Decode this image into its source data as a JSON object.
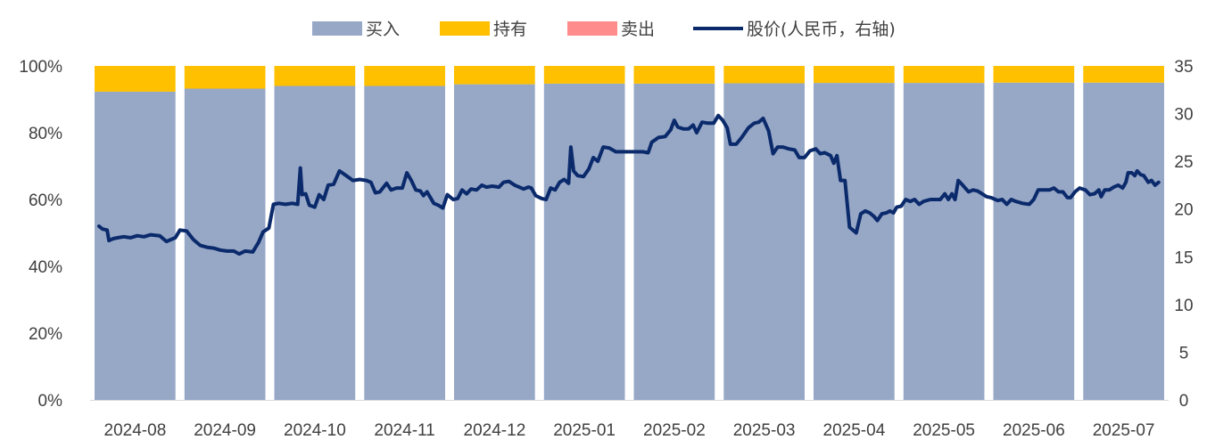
{
  "chart_data": {
    "type": "bar",
    "stacked": true,
    "percent_stacked": true,
    "categories": [
      "2024-08",
      "2024-09",
      "2024-10",
      "2024-11",
      "2024-12",
      "2025-01",
      "2025-02",
      "2025-03",
      "2025-04",
      "2025-05",
      "2025-06",
      "2025-07"
    ],
    "series": [
      {
        "name": "买入",
        "color": "#97A8C7",
        "values": [
          92.3,
          93.2,
          94.0,
          94.0,
          94.5,
          94.7,
          94.7,
          94.8,
          94.9,
          94.9,
          95.0,
          95.0
        ]
      },
      {
        "name": "持有",
        "color": "#FFC000",
        "values": [
          7.7,
          6.8,
          6.0,
          6.0,
          5.5,
          5.3,
          5.3,
          5.2,
          5.1,
          5.1,
          5.0,
          5.0
        ]
      },
      {
        "name": "卖出",
        "color": "#FF8C8C",
        "values": [
          0,
          0,
          0,
          0,
          0,
          0,
          0,
          0,
          0,
          0,
          0,
          0
        ]
      }
    ],
    "line_series": {
      "name": "股价(人民币，右轴)",
      "color": "#0B2A6B",
      "axis": "right",
      "points": [
        [
          0.0,
          18.2
        ],
        [
          0.08,
          17.9
        ],
        [
          0.18,
          17.8
        ],
        [
          0.22,
          16.7
        ],
        [
          0.32,
          16.9
        ],
        [
          0.42,
          17.0
        ],
        [
          0.55,
          17.1
        ],
        [
          0.7,
          17.0
        ],
        [
          0.85,
          17.2
        ],
        [
          1.0,
          17.1
        ],
        [
          1.15,
          17.3
        ],
        [
          1.35,
          17.2
        ],
        [
          1.5,
          16.6
        ],
        [
          1.7,
          17.0
        ],
        [
          1.8,
          17.8
        ],
        [
          1.95,
          17.7
        ],
        [
          2.1,
          16.8
        ],
        [
          2.25,
          16.2
        ],
        [
          2.4,
          16.0
        ],
        [
          2.55,
          15.9
        ],
        [
          2.7,
          15.7
        ],
        [
          2.85,
          15.6
        ],
        [
          3.0,
          15.6
        ],
        [
          3.12,
          15.3
        ],
        [
          3.25,
          15.6
        ],
        [
          3.42,
          15.5
        ],
        [
          3.55,
          16.5
        ],
        [
          3.65,
          17.6
        ],
        [
          3.78,
          18.0
        ],
        [
          3.88,
          20.5
        ],
        [
          4.0,
          20.6
        ],
        [
          4.15,
          20.5
        ],
        [
          4.3,
          20.6
        ],
        [
          4.42,
          20.5
        ],
        [
          4.48,
          24.3
        ],
        [
          4.52,
          21.5
        ],
        [
          4.6,
          21.6
        ],
        [
          4.68,
          20.4
        ],
        [
          4.8,
          20.2
        ],
        [
          4.9,
          21.5
        ],
        [
          5.0,
          21.0
        ],
        [
          5.1,
          22.5
        ],
        [
          5.22,
          22.6
        ],
        [
          5.35,
          24.0
        ],
        [
          5.5,
          23.5
        ],
        [
          5.65,
          23.0
        ],
        [
          5.8,
          23.1
        ],
        [
          5.95,
          23.0
        ],
        [
          6.05,
          22.8
        ],
        [
          6.15,
          21.7
        ],
        [
          6.25,
          21.8
        ],
        [
          6.4,
          22.7
        ],
        [
          6.5,
          22.0
        ],
        [
          6.62,
          22.2
        ],
        [
          6.75,
          22.2
        ],
        [
          6.85,
          23.8
        ],
        [
          6.95,
          23.0
        ],
        [
          7.05,
          22.0
        ],
        [
          7.15,
          21.9
        ],
        [
          7.22,
          21.4
        ],
        [
          7.3,
          21.8
        ],
        [
          7.45,
          20.6
        ],
        [
          7.55,
          20.4
        ],
        [
          7.65,
          20.1
        ],
        [
          7.75,
          21.5
        ],
        [
          7.88,
          21.0
        ],
        [
          7.98,
          21.1
        ],
        [
          8.08,
          22.0
        ],
        [
          8.18,
          21.6
        ],
        [
          8.28,
          22.1
        ],
        [
          8.4,
          22.0
        ],
        [
          8.52,
          22.5
        ],
        [
          8.62,
          22.3
        ],
        [
          8.75,
          22.4
        ],
        [
          8.9,
          22.3
        ],
        [
          9.0,
          22.8
        ],
        [
          9.12,
          22.9
        ],
        [
          9.25,
          22.5
        ],
        [
          9.35,
          22.3
        ],
        [
          9.45,
          22.1
        ],
        [
          9.55,
          22.3
        ],
        [
          9.62,
          22.2
        ],
        [
          9.72,
          21.4
        ],
        [
          9.85,
          21.1
        ],
        [
          9.95,
          21.0
        ],
        [
          10.05,
          22.2
        ],
        [
          10.15,
          22.0
        ],
        [
          10.25,
          22.8
        ],
        [
          10.35,
          23.1
        ],
        [
          10.45,
          22.7
        ],
        [
          10.5,
          26.5
        ],
        [
          10.56,
          24.0
        ],
        [
          10.65,
          23.5
        ],
        [
          10.78,
          23.4
        ],
        [
          10.9,
          24.2
        ],
        [
          11.0,
          25.4
        ],
        [
          11.1,
          25.0
        ],
        [
          11.22,
          26.5
        ],
        [
          11.35,
          26.4
        ],
        [
          11.5,
          26.0
        ],
        [
          11.65,
          26.0
        ],
        [
          11.8,
          26.0
        ],
        [
          11.95,
          26.0
        ],
        [
          12.1,
          26.0
        ],
        [
          12.22,
          25.9
        ],
        [
          12.3,
          27.0
        ],
        [
          12.45,
          27.5
        ],
        [
          12.6,
          27.6
        ],
        [
          12.72,
          28.3
        ],
        [
          12.8,
          29.3
        ],
        [
          12.88,
          28.6
        ],
        [
          13.0,
          28.4
        ],
        [
          13.12,
          28.4
        ],
        [
          13.22,
          28.8
        ],
        [
          13.3,
          28.0
        ],
        [
          13.42,
          29.1
        ],
        [
          13.55,
          29.0
        ],
        [
          13.68,
          29.0
        ],
        [
          13.78,
          29.8
        ],
        [
          13.88,
          29.3
        ],
        [
          13.98,
          28.5
        ],
        [
          14.05,
          26.8
        ],
        [
          14.18,
          26.8
        ],
        [
          14.3,
          27.5
        ],
        [
          14.45,
          28.5
        ],
        [
          14.58,
          29.0
        ],
        [
          14.68,
          29.1
        ],
        [
          14.78,
          29.5
        ],
        [
          14.9,
          28.2
        ],
        [
          15.0,
          25.8
        ],
        [
          15.1,
          26.5
        ],
        [
          15.22,
          26.5
        ],
        [
          15.35,
          26.3
        ],
        [
          15.48,
          26.2
        ],
        [
          15.58,
          25.4
        ],
        [
          15.7,
          25.4
        ],
        [
          15.82,
          26.1
        ],
        [
          15.95,
          26.3
        ],
        [
          16.05,
          25.8
        ],
        [
          16.15,
          25.9
        ],
        [
          16.28,
          25.6
        ],
        [
          16.35,
          24.8
        ],
        [
          16.42,
          25.6
        ],
        [
          16.5,
          23.0
        ],
        [
          16.6,
          23.0
        ],
        [
          16.7,
          18.1
        ],
        [
          16.8,
          17.7
        ],
        [
          16.85,
          17.5
        ],
        [
          16.95,
          19.5
        ],
        [
          17.05,
          19.8
        ],
        [
          17.15,
          19.6
        ],
        [
          17.25,
          19.2
        ],
        [
          17.32,
          18.8
        ],
        [
          17.42,
          19.5
        ],
        [
          17.52,
          19.6
        ],
        [
          17.6,
          19.8
        ],
        [
          17.68,
          19.6
        ],
        [
          17.75,
          20.2
        ],
        [
          17.85,
          20.3
        ],
        [
          17.95,
          21.0
        ],
        [
          18.05,
          20.8
        ],
        [
          18.15,
          21.0
        ],
        [
          18.25,
          20.5
        ],
        [
          18.35,
          20.8
        ],
        [
          18.5,
          21.0
        ],
        [
          18.6,
          21.0
        ],
        [
          18.72,
          21.0
        ],
        [
          18.82,
          21.6
        ],
        [
          18.9,
          21.0
        ],
        [
          18.98,
          21.6
        ],
        [
          19.05,
          21.0
        ],
        [
          19.12,
          23.0
        ],
        [
          19.22,
          22.5
        ],
        [
          19.35,
          21.8
        ],
        [
          19.45,
          22.0
        ],
        [
          19.55,
          21.9
        ],
        [
          19.65,
          21.6
        ],
        [
          19.75,
          21.3
        ],
        [
          19.85,
          21.2
        ],
        [
          20.0,
          20.9
        ],
        [
          20.1,
          21.0
        ],
        [
          20.2,
          20.5
        ],
        [
          20.3,
          21.0
        ],
        [
          20.4,
          20.8
        ],
        [
          20.55,
          20.6
        ],
        [
          20.7,
          20.5
        ],
        [
          20.8,
          21.0
        ],
        [
          20.9,
          22.0
        ],
        [
          21.0,
          22.0
        ],
        [
          21.15,
          22.0
        ],
        [
          21.25,
          22.2
        ],
        [
          21.35,
          21.8
        ],
        [
          21.45,
          21.8
        ],
        [
          21.55,
          21.2
        ],
        [
          21.62,
          21.2
        ],
        [
          21.72,
          21.8
        ],
        [
          21.82,
          22.2
        ],
        [
          21.95,
          22.0
        ],
        [
          22.05,
          21.5
        ],
        [
          22.15,
          21.6
        ],
        [
          22.25,
          22.0
        ],
        [
          22.3,
          21.3
        ],
        [
          22.38,
          22.0
        ],
        [
          22.48,
          22.0
        ],
        [
          22.58,
          22.3
        ],
        [
          22.68,
          22.5
        ],
        [
          22.78,
          22.2
        ],
        [
          22.85,
          22.8
        ],
        [
          22.9,
          23.8
        ],
        [
          22.98,
          23.8
        ],
        [
          23.05,
          23.5
        ],
        [
          23.1,
          24.0
        ],
        [
          23.18,
          23.6
        ],
        [
          23.25,
          23.5
        ],
        [
          23.35,
          22.8
        ],
        [
          23.42,
          23.0
        ],
        [
          23.5,
          22.5
        ],
        [
          23.58,
          22.8
        ]
      ]
    },
    "y_left": {
      "min": 0,
      "max": 100,
      "step": 20,
      "ticks": [
        "0%",
        "20%",
        "40%",
        "60%",
        "80%",
        "100%"
      ]
    },
    "y_right": {
      "min": 0,
      "max": 35,
      "step": 5,
      "ticks": [
        "0",
        "5",
        "10",
        "15",
        "20",
        "25",
        "30",
        "35"
      ]
    },
    "legend_position": "top-center",
    "grid": false
  }
}
